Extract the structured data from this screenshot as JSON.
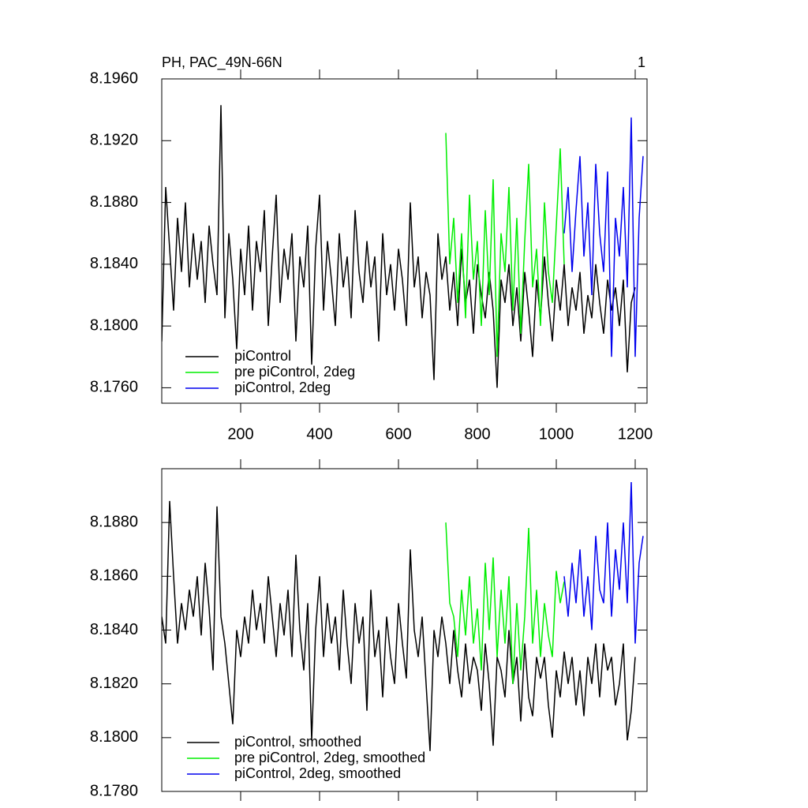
{
  "chart_data": [
    {
      "type": "line",
      "title": "PH, PAC_49N-66N",
      "annotation": "1",
      "xlim": [
        0,
        1230
      ],
      "xticks": [
        200,
        400,
        600,
        800,
        1000,
        1200
      ],
      "ylim": [
        8.175,
        8.196
      ],
      "yticks": [
        {
          "value": 8.176,
          "label": "8.1760"
        },
        {
          "value": 8.18,
          "label": "8.1800"
        },
        {
          "value": 8.184,
          "label": "8.1840"
        },
        {
          "value": 8.188,
          "label": "8.1880"
        },
        {
          "value": 8.192,
          "label": "8.1920"
        },
        {
          "value": 8.196,
          "label": "8.1960"
        }
      ],
      "series": [
        {
          "name": "piControl",
          "color": "#000000",
          "x": [
            0,
            10,
            20,
            30,
            40,
            50,
            60,
            70,
            80,
            90,
            100,
            110,
            120,
            130,
            140,
            150,
            160,
            170,
            180,
            190,
            200,
            210,
            220,
            230,
            240,
            250,
            260,
            270,
            280,
            290,
            300,
            310,
            320,
            330,
            340,
            350,
            360,
            370,
            380,
            390,
            400,
            410,
            420,
            430,
            440,
            450,
            460,
            470,
            480,
            490,
            500,
            510,
            520,
            530,
            540,
            550,
            560,
            570,
            580,
            590,
            600,
            610,
            620,
            630,
            640,
            650,
            660,
            670,
            680,
            690,
            700,
            710,
            720,
            730,
            740,
            750,
            760,
            770,
            780,
            790,
            800,
            810,
            820,
            830,
            840,
            850,
            860,
            870,
            880,
            890,
            900,
            910,
            920,
            930,
            940,
            950,
            960,
            970,
            980,
            990,
            1000,
            1010,
            1020,
            1030,
            1040,
            1050,
            1060,
            1070,
            1080,
            1090,
            1100,
            1110,
            1120,
            1130,
            1140,
            1150,
            1160,
            1170,
            1180,
            1190,
            1200
          ],
          "values": [
            8.179,
            8.189,
            8.185,
            8.181,
            8.187,
            8.1835,
            8.188,
            8.1825,
            8.186,
            8.183,
            8.1855,
            8.1815,
            8.1865,
            8.184,
            8.182,
            8.1943,
            8.1805,
            8.186,
            8.183,
            8.1785,
            8.185,
            8.182,
            8.1865,
            8.181,
            8.1855,
            8.1835,
            8.1875,
            8.18,
            8.1845,
            8.1885,
            8.1815,
            8.185,
            8.183,
            8.186,
            8.179,
            8.1845,
            8.1825,
            8.1865,
            8.1775,
            8.185,
            8.1885,
            8.181,
            8.1855,
            8.183,
            8.18,
            8.186,
            8.1825,
            8.1845,
            8.1805,
            8.1875,
            8.1835,
            8.1815,
            8.1855,
            8.1825,
            8.1845,
            8.179,
            8.186,
            8.182,
            8.184,
            8.181,
            8.185,
            8.183,
            8.18,
            8.188,
            8.1825,
            8.1845,
            8.1805,
            8.1835,
            8.182,
            8.1765,
            8.186,
            8.183,
            8.1845,
            8.181,
            8.1835,
            8.18,
            8.185,
            8.1815,
            8.183,
            8.1795,
            8.184,
            8.182,
            8.1805,
            8.1835,
            8.181,
            8.176,
            8.183,
            8.1815,
            8.184,
            8.18,
            8.1825,
            8.179,
            8.1835,
            8.181,
            8.178,
            8.183,
            8.1805,
            8.1845,
            8.1815,
            8.179,
            8.183,
            8.181,
            8.184,
            8.18,
            8.1825,
            8.181,
            8.1835,
            8.1795,
            8.182,
            8.1805,
            8.184,
            8.1815,
            8.1795,
            8.183,
            8.181,
            8.1825,
            8.18,
            8.183,
            8.177,
            8.1815,
            8.1825
          ]
        },
        {
          "name": "pre piControl, 2deg",
          "color": "#00ee00",
          "x": [
            720,
            730,
            740,
            750,
            760,
            770,
            780,
            790,
            800,
            810,
            820,
            830,
            840,
            850,
            860,
            870,
            880,
            890,
            900,
            910,
            920,
            930,
            940,
            950,
            960,
            970,
            980,
            990,
            1000,
            1010,
            1020
          ],
          "values": [
            8.1925,
            8.184,
            8.187,
            8.1815,
            8.186,
            8.1805,
            8.1885,
            8.183,
            8.1855,
            8.18,
            8.1875,
            8.182,
            8.1895,
            8.178,
            8.186,
            8.1835,
            8.189,
            8.181,
            8.187,
            8.1795,
            8.1855,
            8.1905,
            8.1825,
            8.185,
            8.18,
            8.188,
            8.1835,
            8.1815,
            8.1865,
            8.1915,
            8.184
          ]
        },
        {
          "name": "piControl, 2deg",
          "color": "#0000ee",
          "x": [
            1020,
            1030,
            1040,
            1050,
            1060,
            1070,
            1080,
            1090,
            1100,
            1110,
            1120,
            1130,
            1140,
            1150,
            1160,
            1170,
            1180,
            1190,
            1200,
            1210,
            1220
          ],
          "values": [
            8.186,
            8.189,
            8.1835,
            8.1875,
            8.191,
            8.1845,
            8.188,
            8.182,
            8.1905,
            8.186,
            8.1835,
            8.19,
            8.178,
            8.187,
            8.1845,
            8.189,
            8.1825,
            8.1935,
            8.178,
            8.187,
            8.191
          ]
        }
      ]
    },
    {
      "type": "line",
      "xlim": [
        0,
        1230
      ],
      "xticks": [
        200,
        400,
        600,
        800,
        1000,
        1200
      ],
      "ylim": [
        8.178,
        8.19
      ],
      "yticks": [
        {
          "value": 8.178,
          "label": "8.1780"
        },
        {
          "value": 8.18,
          "label": "8.1800"
        },
        {
          "value": 8.182,
          "label": "8.1820"
        },
        {
          "value": 8.184,
          "label": "8.1840"
        },
        {
          "value": 8.186,
          "label": "8.1860"
        },
        {
          "value": 8.188,
          "label": "8.1880"
        }
      ],
      "series": [
        {
          "name": "piControl, smoothed",
          "color": "#000000",
          "x": [
            0,
            10,
            20,
            30,
            40,
            50,
            60,
            70,
            80,
            90,
            100,
            110,
            120,
            130,
            140,
            150,
            160,
            170,
            180,
            190,
            200,
            210,
            220,
            230,
            240,
            250,
            260,
            270,
            280,
            290,
            300,
            310,
            320,
            330,
            340,
            350,
            360,
            370,
            380,
            390,
            400,
            410,
            420,
            430,
            440,
            450,
            460,
            470,
            480,
            490,
            500,
            510,
            520,
            530,
            540,
            550,
            560,
            570,
            580,
            590,
            600,
            610,
            620,
            630,
            640,
            650,
            660,
            670,
            680,
            690,
            700,
            710,
            720,
            730,
            740,
            750,
            760,
            770,
            780,
            790,
            800,
            810,
            820,
            830,
            840,
            850,
            860,
            870,
            880,
            890,
            900,
            910,
            920,
            930,
            940,
            950,
            960,
            970,
            980,
            990,
            1000,
            1010,
            1020,
            1030,
            1040,
            1050,
            1060,
            1070,
            1080,
            1090,
            1100,
            1110,
            1120,
            1130,
            1140,
            1150,
            1160,
            1170,
            1180,
            1190,
            1200
          ],
          "values": [
            8.1845,
            8.1835,
            8.1888,
            8.186,
            8.1835,
            8.185,
            8.184,
            8.1855,
            8.1845,
            8.186,
            8.1838,
            8.1865,
            8.1848,
            8.1825,
            8.1886,
            8.1845,
            8.1835,
            8.182,
            8.1805,
            8.184,
            8.183,
            8.1845,
            8.1835,
            8.1855,
            8.184,
            8.185,
            8.1835,
            8.186,
            8.1845,
            8.183,
            8.185,
            8.1838,
            8.1855,
            8.183,
            8.1868,
            8.184,
            8.1825,
            8.185,
            8.1799,
            8.184,
            8.186,
            8.183,
            8.185,
            8.1835,
            8.1845,
            8.1825,
            8.1855,
            8.1835,
            8.182,
            8.185,
            8.1835,
            8.1845,
            8.181,
            8.1855,
            8.183,
            8.184,
            8.1815,
            8.1845,
            8.183,
            8.182,
            8.185,
            8.1835,
            8.1822,
            8.187,
            8.184,
            8.183,
            8.1845,
            8.182,
            8.1795,
            8.184,
            8.183,
            8.1845,
            8.1835,
            8.182,
            8.184,
            8.1825,
            8.1815,
            8.1835,
            8.182,
            8.183,
            8.1825,
            8.181,
            8.1835,
            8.182,
            8.1797,
            8.183,
            8.1825,
            8.1815,
            8.184,
            8.182,
            8.183,
            8.1806,
            8.1835,
            8.1815,
            8.1808,
            8.183,
            8.1822,
            8.183,
            8.1812,
            8.18,
            8.1825,
            8.1815,
            8.1832,
            8.182,
            8.183,
            8.1812,
            8.1825,
            8.1808,
            8.183,
            8.182,
            8.1835,
            8.1815,
            8.1835,
            8.1825,
            8.183,
            8.1812,
            8.182,
            8.1835,
            8.1799,
            8.181,
            8.183
          ]
        },
        {
          "name": "pre piControl, 2deg, smoothed",
          "color": "#00ee00",
          "x": [
            720,
            730,
            740,
            750,
            760,
            770,
            780,
            790,
            800,
            810,
            820,
            830,
            840,
            850,
            860,
            870,
            880,
            890,
            900,
            910,
            920,
            930,
            940,
            950,
            960,
            970,
            980,
            990,
            1000,
            1010,
            1020
          ],
          "values": [
            8.188,
            8.185,
            8.1845,
            8.183,
            8.1855,
            8.1838,
            8.186,
            8.1835,
            8.1848,
            8.1825,
            8.1865,
            8.184,
            8.1867,
            8.183,
            8.1855,
            8.1835,
            8.186,
            8.182,
            8.185,
            8.1825,
            8.1845,
            8.1878,
            8.1835,
            8.1855,
            8.183,
            8.185,
            8.1838,
            8.183,
            8.1862,
            8.185,
            8.1858
          ]
        },
        {
          "name": "piControl, 2deg, smoothed",
          "color": "#0000ee",
          "x": [
            1020,
            1030,
            1040,
            1050,
            1060,
            1070,
            1080,
            1090,
            1100,
            1110,
            1120,
            1130,
            1140,
            1150,
            1160,
            1170,
            1180,
            1190,
            1200,
            1210,
            1220
          ],
          "values": [
            8.186,
            8.1845,
            8.1865,
            8.185,
            8.187,
            8.1845,
            8.186,
            8.184,
            8.1875,
            8.1855,
            8.185,
            8.188,
            8.1845,
            8.187,
            8.1855,
            8.188,
            8.185,
            8.1895,
            8.1835,
            8.1865,
            8.1875
          ]
        }
      ]
    }
  ]
}
